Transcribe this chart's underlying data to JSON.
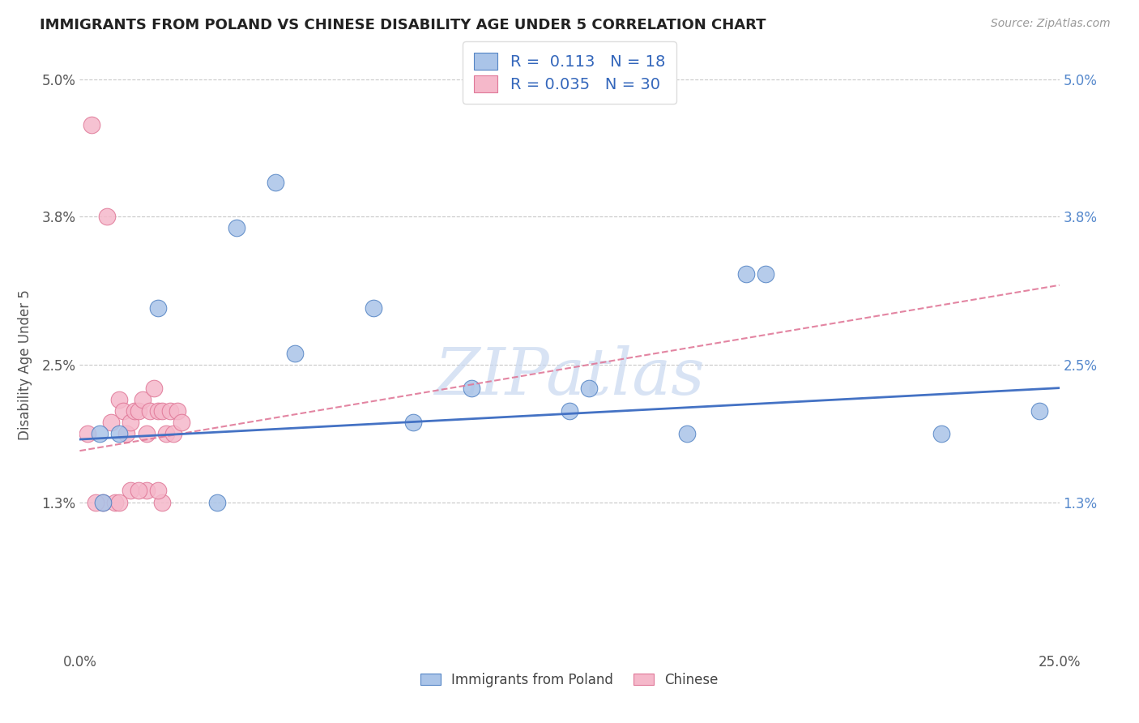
{
  "title": "IMMIGRANTS FROM POLAND VS CHINESE DISABILITY AGE UNDER 5 CORRELATION CHART",
  "source": "Source: ZipAtlas.com",
  "ylabel_label": "Disability Age Under 5",
  "xlim": [
    0.0,
    0.25
  ],
  "ylim": [
    0.0,
    0.05
  ],
  "xticks": [
    0.0,
    0.25
  ],
  "xtick_labels": [
    "0.0%",
    "25.0%"
  ],
  "ytick_positions": [
    0.013,
    0.025,
    0.038,
    0.05
  ],
  "ytick_labels": [
    "1.3%",
    "2.5%",
    "3.8%",
    "5.0%"
  ],
  "grid_color": "#c8c8c8",
  "background_color": "#ffffff",
  "poland_color": "#aac4e8",
  "chinese_color": "#f5b8ca",
  "poland_edge_color": "#5585c5",
  "chinese_edge_color": "#e07898",
  "poland_line_color": "#4472c4",
  "chinese_line_color": "#e07898",
  "poland_R": 0.113,
  "poland_N": 18,
  "chinese_R": 0.035,
  "chinese_N": 30,
  "poland_scatter_x": [
    0.005,
    0.02,
    0.05,
    0.075,
    0.1,
    0.13,
    0.155,
    0.175,
    0.22,
    0.245,
    0.01,
    0.04,
    0.085,
    0.055,
    0.17,
    0.006,
    0.035,
    0.125
  ],
  "poland_scatter_y": [
    0.019,
    0.03,
    0.041,
    0.03,
    0.023,
    0.023,
    0.019,
    0.033,
    0.019,
    0.021,
    0.019,
    0.037,
    0.02,
    0.026,
    0.033,
    0.013,
    0.013,
    0.021
  ],
  "chinese_scatter_x": [
    0.003,
    0.007,
    0.008,
    0.01,
    0.011,
    0.012,
    0.013,
    0.014,
    0.015,
    0.016,
    0.017,
    0.018,
    0.019,
    0.02,
    0.021,
    0.022,
    0.023,
    0.024,
    0.025,
    0.026,
    0.006,
    0.009,
    0.013,
    0.017,
    0.021,
    0.002,
    0.004,
    0.01,
    0.015,
    0.02
  ],
  "chinese_scatter_y": [
    0.046,
    0.038,
    0.02,
    0.022,
    0.021,
    0.019,
    0.02,
    0.021,
    0.021,
    0.022,
    0.019,
    0.021,
    0.023,
    0.021,
    0.021,
    0.019,
    0.021,
    0.019,
    0.021,
    0.02,
    0.013,
    0.013,
    0.014,
    0.014,
    0.013,
    0.019,
    0.013,
    0.013,
    0.014,
    0.014
  ],
  "watermark_text": "ZIPatlas",
  "watermark_color": "#c8d8f0",
  "legend_label_poland": "Immigrants from Poland",
  "legend_label_chinese": "Chinese",
  "poland_line_x": [
    0.0,
    0.25
  ],
  "poland_line_y": [
    0.0185,
    0.023
  ],
  "chinese_line_x": [
    0.0,
    0.25
  ],
  "chinese_line_y": [
    0.0175,
    0.032
  ]
}
